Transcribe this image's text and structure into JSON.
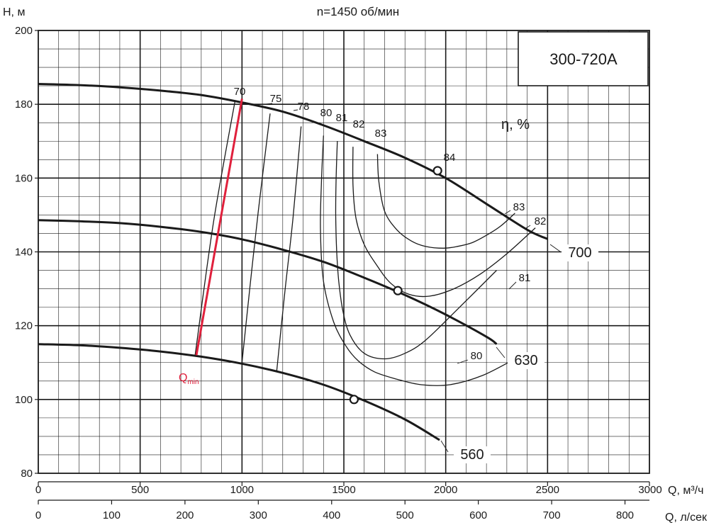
{
  "chart_data": {
    "type": "line",
    "title": "n=1450 об/мин",
    "model_label": "300-720A",
    "ylabel": "H, м",
    "xlabel": "Q, м³/ч",
    "x2label": "Q, л/сек",
    "eta_label": "η, %",
    "xlim": [
      0,
      3000
    ],
    "ylim": [
      80,
      200
    ],
    "x2lim": [
      0,
      833.33
    ],
    "x_ticks": [
      0,
      500,
      1000,
      1500,
      2000,
      2500
    ],
    "x_tick_last_label": "3000",
    "y_ticks": [
      80,
      100,
      120,
      140,
      160,
      180,
      200
    ],
    "x2_ticks": [
      0,
      100,
      200,
      300,
      400,
      500,
      600,
      700,
      800
    ],
    "grid": true,
    "series": [
      {
        "name": "700",
        "x": [
          0,
          200,
          400,
          600,
          800,
          1000,
          1200,
          1400,
          1600,
          1800,
          2000,
          2200,
          2400,
          2500
        ],
        "y": [
          185.5,
          185.2,
          184.6,
          183.7,
          182.5,
          180.5,
          178,
          174.3,
          170,
          165.5,
          160,
          153,
          146,
          143.5
        ]
      },
      {
        "name": "630",
        "x": [
          0,
          200,
          400,
          600,
          800,
          1000,
          1200,
          1400,
          1600,
          1800,
          2000,
          2200,
          2250
        ],
        "y": [
          148.6,
          148.3,
          147.8,
          146.8,
          145.4,
          143.4,
          140.6,
          137.3,
          133,
          128.3,
          123,
          117,
          115
        ]
      },
      {
        "name": "560",
        "x": [
          0,
          200,
          400,
          600,
          800,
          1000,
          1200,
          1400,
          1600,
          1800,
          1970
        ],
        "y": [
          115,
          114.7,
          114,
          113,
          111.6,
          109.7,
          107.2,
          104,
          99.7,
          94.6,
          89
        ]
      }
    ],
    "bep_points": [
      {
        "x": 1960,
        "y": 162
      },
      {
        "x": 1765,
        "y": 129.5
      },
      {
        "x": 1550,
        "y": 100
      }
    ],
    "efficiency_labels": [
      "70",
      "75",
      "78",
      "80",
      "81",
      "82",
      "83",
      "84",
      "83",
      "82",
      "81",
      "80"
    ],
    "efficiency_curves": [
      {
        "label": "70",
        "x": [
          966,
          860,
          770
        ],
        "y": [
          181,
          148,
          112
        ]
      },
      {
        "label": "75",
        "x": [
          1138,
          1080,
          1040,
          1000
        ],
        "y": [
          177.5,
          151,
          131,
          110
        ]
      },
      {
        "label": "78",
        "x": [
          1290,
          1250,
          1210,
          1170
        ],
        "y": [
          174,
          149,
          129,
          107.5
        ]
      },
      {
        "label": "80",
        "x": [
          1400,
          1390,
          1385,
          1400,
          1450,
          1510,
          1570,
          1650,
          1760,
          1880,
          2020,
          2180,
          2340
        ],
        "y": [
          171.5,
          159,
          146,
          132,
          121,
          114.5,
          110.5,
          107.5,
          105.5,
          104,
          104,
          106.5,
          111
        ]
      },
      {
        "label": "81",
        "x": [
          1468,
          1462,
          1460,
          1465,
          1475,
          1495,
          1530,
          1600,
          1700,
          1800,
          1900,
          2050,
          2250
        ],
        "y": [
          170,
          160,
          150,
          140,
          132,
          124,
          117.5,
          112.5,
          111,
          112.5,
          116,
          124,
          135
        ]
      },
      {
        "label": "82",
        "x": [
          1545,
          1545,
          1560,
          1600,
          1660,
          1730,
          1820,
          1920,
          2040,
          2170,
          2300,
          2440
        ],
        "y": [
          168.5,
          158,
          149,
          142,
          136.5,
          131.5,
          128.5,
          128,
          130,
          134,
          139.5,
          146.5
        ]
      },
      {
        "label": "83",
        "x": [
          1665,
          1672,
          1700,
          1760,
          1830,
          1900,
          1990,
          2060,
          2130,
          2200,
          2270,
          2340
        ],
        "y": [
          166.5,
          159,
          151,
          146,
          143,
          141.5,
          141,
          141.5,
          142.5,
          144.5,
          147,
          150.5
        ]
      }
    ],
    "qmin_line": {
      "label": "Qmin",
      "x": [
        776,
        1000
      ],
      "y": [
        112,
        181.5
      ]
    }
  }
}
